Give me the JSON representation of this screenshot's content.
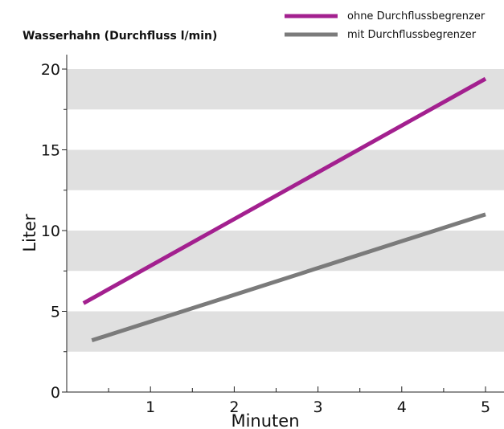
{
  "chart_data": {
    "type": "line",
    "title": "Wasserhahn (Durchfluss l/min)",
    "xlabel": "Minuten",
    "ylabel": "Liter",
    "xlim": [
      0,
      5.2
    ],
    "ylim": [
      0,
      20
    ],
    "x_ticks": [
      1,
      2,
      3,
      4,
      5
    ],
    "y_ticks": [
      0,
      5,
      10,
      15,
      20
    ],
    "grid": "horizontal bands",
    "legend_position": "top-right",
    "series": [
      {
        "name": "ohne Durchflussbegrenzer",
        "color": "#a3208f",
        "x": [
          0.2,
          5.0
        ],
        "y": [
          5.5,
          19.4
        ]
      },
      {
        "name": "mit Durchflussbegrenzer",
        "color": "#7b7b7b",
        "x": [
          0.3,
          5.0
        ],
        "y": [
          3.2,
          11.0
        ]
      }
    ],
    "band_color": "#e0e0e0"
  }
}
